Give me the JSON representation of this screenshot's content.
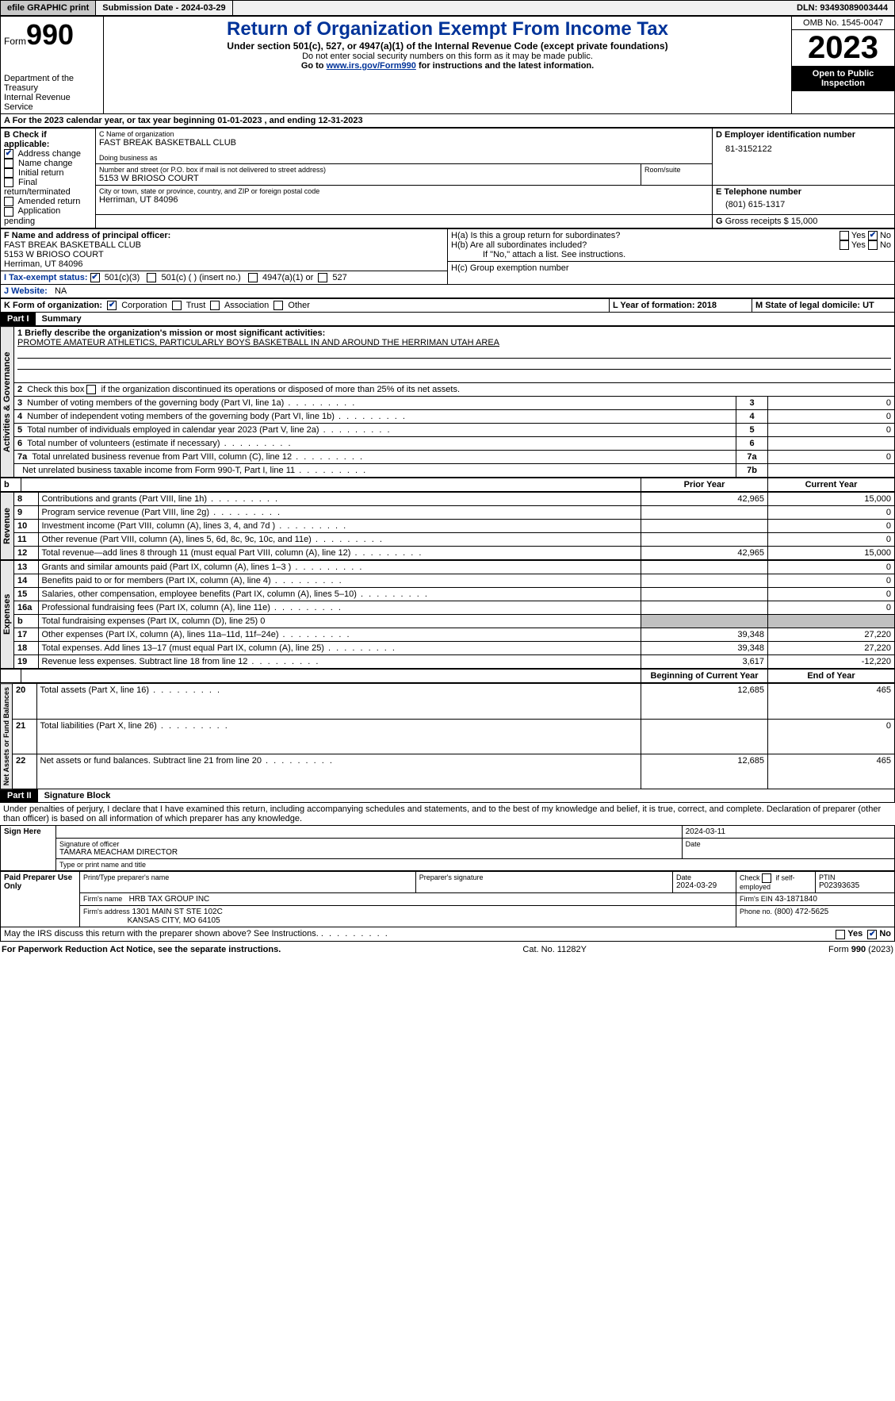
{
  "topbar": {
    "efile": "efile GRAPHIC print",
    "submission": "Submission Date - 2024-03-29",
    "dln_label": "DLN:",
    "dln": "93493089003444"
  },
  "header": {
    "form_word": "Form",
    "form_num": "990",
    "dept": "Department of the Treasury\nInternal Revenue Service",
    "title": "Return of Organization Exempt From Income Tax",
    "sub1": "Under section 501(c), 527, or 4947(a)(1) of the Internal Revenue Code (except private foundations)",
    "sub2": "Do not enter social security numbers on this form as it may be made public.",
    "sub3_pre": "Go to ",
    "sub3_link": "www.irs.gov/Form990",
    "sub3_post": " for instructions and the latest information.",
    "omb": "OMB No. 1545-0047",
    "year": "2023",
    "inspection": "Open to Public Inspection"
  },
  "a_line": "A For the 2023 calendar year, or tax year beginning 01-01-2023   , and ending 12-31-2023",
  "b": {
    "label": "B Check if applicable:",
    "items": [
      "Address change",
      "Name change",
      "Initial return",
      "Final return/terminated",
      "Amended return",
      "Application pending"
    ],
    "checked_idx": 0
  },
  "c": {
    "name_label": "C Name of organization",
    "name": "FAST BREAK BASKETBALL CLUB",
    "dba_label": "Doing business as",
    "addr_label": "Number and street (or P.O. box if mail is not delivered to street address)",
    "room_label": "Room/suite",
    "addr": "5153 W BRIOSO COURT",
    "city_label": "City or town, state or province, country, and ZIP or foreign postal code",
    "city": "Herriman, UT  84096"
  },
  "d": {
    "label": "D Employer identification number",
    "value": "81-3152122"
  },
  "e": {
    "label": "E Telephone number",
    "value": "(801) 615-1317"
  },
  "g": {
    "label": "G",
    "text": "Gross receipts $ 15,000"
  },
  "f": {
    "label": "F  Name and address of principal officer:",
    "lines": [
      "FAST BREAK BASKETBALL CLUB",
      "5153 W BRIOSO COURT",
      "Herriman, UT  84096"
    ]
  },
  "h": {
    "a_label": "H(a)  Is this a group return for subordinates?",
    "b_label": "H(b)  Are all subordinates included?",
    "b_note": "If \"No,\" attach a list. See instructions.",
    "c_label": "H(c)  Group exemption number",
    "yes": "Yes",
    "no": "No"
  },
  "i": {
    "label": "I  Tax-exempt status:",
    "opts": [
      "501(c)(3)",
      "501(c) (  ) (insert no.)",
      "4947(a)(1) or",
      "527"
    ]
  },
  "j": {
    "label": "J  Website:",
    "value": "NA"
  },
  "k": {
    "label": "K Form of organization:",
    "opts": [
      "Corporation",
      "Trust",
      "Association",
      "Other"
    ]
  },
  "l": {
    "label": "L Year of formation: 2018"
  },
  "m": {
    "label": "M State of legal domicile: UT"
  },
  "part1": {
    "num": "Part I",
    "title": "Summary"
  },
  "s1": {
    "label": "Activities & Governance",
    "l1_label": "1  Briefly describe the organization's mission or most significant activities:",
    "l1_value": "PROMOTE AMATEUR ATHLETICS, PARTICULARLY BOYS BASKETBALL IN AND AROUND THE HERRIMAN UTAH AREA",
    "l2": "2   Check this box      if the organization discontinued its operations or disposed of more than 25% of its net assets.",
    "rows": [
      {
        "n": "3",
        "t": "Number of voting members of the governing body (Part VI, line 1a)",
        "b": "3",
        "v": "0"
      },
      {
        "n": "4",
        "t": "Number of independent voting members of the governing body (Part VI, line 1b)",
        "b": "4",
        "v": "0"
      },
      {
        "n": "5",
        "t": "Total number of individuals employed in calendar year 2023 (Part V, line 2a)",
        "b": "5",
        "v": "0"
      },
      {
        "n": "6",
        "t": "Total number of volunteers (estimate if necessary)",
        "b": "6",
        "v": ""
      },
      {
        "n": "7a",
        "t": "Total unrelated business revenue from Part VIII, column (C), line 12",
        "b": "7a",
        "v": "0"
      },
      {
        "n": "",
        "t": "Net unrelated business taxable income from Form 990-T, Part I, line 11",
        "b": "7b",
        "v": ""
      }
    ]
  },
  "s2": {
    "label": "Revenue",
    "h_prior": "Prior Year",
    "h_curr": "Current Year",
    "rows": [
      {
        "n": "8",
        "t": "Contributions and grants (Part VIII, line 1h)",
        "p": "42,965",
        "c": "15,000"
      },
      {
        "n": "9",
        "t": "Program service revenue (Part VIII, line 2g)",
        "p": "",
        "c": "0"
      },
      {
        "n": "10",
        "t": "Investment income (Part VIII, column (A), lines 3, 4, and 7d )",
        "p": "",
        "c": "0"
      },
      {
        "n": "11",
        "t": "Other revenue (Part VIII, column (A), lines 5, 6d, 8c, 9c, 10c, and 11e)",
        "p": "",
        "c": "0"
      },
      {
        "n": "12",
        "t": "Total revenue—add lines 8 through 11 (must equal Part VIII, column (A), line 12)",
        "p": "42,965",
        "c": "15,000"
      }
    ]
  },
  "s3": {
    "label": "Expenses",
    "rows": [
      {
        "n": "13",
        "t": "Grants and similar amounts paid (Part IX, column (A), lines 1–3 )",
        "p": "",
        "c": "0"
      },
      {
        "n": "14",
        "t": "Benefits paid to or for members (Part IX, column (A), line 4)",
        "p": "",
        "c": "0"
      },
      {
        "n": "15",
        "t": "Salaries, other compensation, employee benefits (Part IX, column (A), lines 5–10)",
        "p": "",
        "c": "0"
      },
      {
        "n": "16a",
        "t": "Professional fundraising fees (Part IX, column (A), line 11e)",
        "p": "",
        "c": "0"
      },
      {
        "n": "b",
        "t": "Total fundraising expenses (Part IX, column (D), line 25) 0",
        "p": "GREY",
        "c": "GREY"
      },
      {
        "n": "17",
        "t": "Other expenses (Part IX, column (A), lines 11a–11d, 11f–24e)",
        "p": "39,348",
        "c": "27,220"
      },
      {
        "n": "18",
        "t": "Total expenses. Add lines 13–17 (must equal Part IX, column (A), line 25)",
        "p": "39,348",
        "c": "27,220"
      },
      {
        "n": "19",
        "t": "Revenue less expenses. Subtract line 18 from line 12",
        "p": "3,617",
        "c": "-12,220"
      }
    ]
  },
  "s4": {
    "label": "Net Assets or Fund Balances",
    "h_beg": "Beginning of Current Year",
    "h_end": "End of Year",
    "rows": [
      {
        "n": "20",
        "t": "Total assets (Part X, line 16)",
        "p": "12,685",
        "c": "465"
      },
      {
        "n": "21",
        "t": "Total liabilities (Part X, line 26)",
        "p": "",
        "c": "0"
      },
      {
        "n": "22",
        "t": "Net assets or fund balances. Subtract line 21 from line 20",
        "p": "12,685",
        "c": "465"
      }
    ]
  },
  "part2": {
    "num": "Part II",
    "title": "Signature Block"
  },
  "perjury": "Under penalties of perjury, I declare that I have examined this return, including accompanying schedules and statements, and to the best of my knowledge and belief, it is true, correct, and complete. Declaration of preparer (other than officer) is based on all information of which preparer has any knowledge.",
  "sign": {
    "here": "Sign Here",
    "sig_label": "Signature of officer",
    "date_label": "Date",
    "date": "2024-03-11",
    "officer": "TAMARA MEACHAM  DIRECTOR",
    "type_label": "Type or print name and title"
  },
  "paid": {
    "label": "Paid Preparer Use Only",
    "h1": "Print/Type preparer's name",
    "h2": "Preparer's signature",
    "h3": "Date",
    "h3v": "2024-03-29",
    "h4": "Check        if self-employed",
    "h5": "PTIN",
    "h5v": "P02393635",
    "firm_name_l": "Firm's name",
    "firm_name": "HRB TAX GROUP INC",
    "firm_ein_l": "Firm's EIN",
    "firm_ein": "43-1871840",
    "firm_addr_l": "Firm's address",
    "firm_addr1": "1301 MAIN ST STE 102C",
    "firm_addr2": "KANSAS CITY, MO  64105",
    "phone_l": "Phone no.",
    "phone": "(800) 472-5625"
  },
  "discuss": "May the IRS discuss this return with the preparer shown above? See Instructions.",
  "footer": {
    "left": "For Paperwork Reduction Act Notice, see the separate instructions.",
    "mid": "Cat. No. 11282Y",
    "right_pre": "Form ",
    "right_b": "990",
    "right_post": " (2023)"
  }
}
